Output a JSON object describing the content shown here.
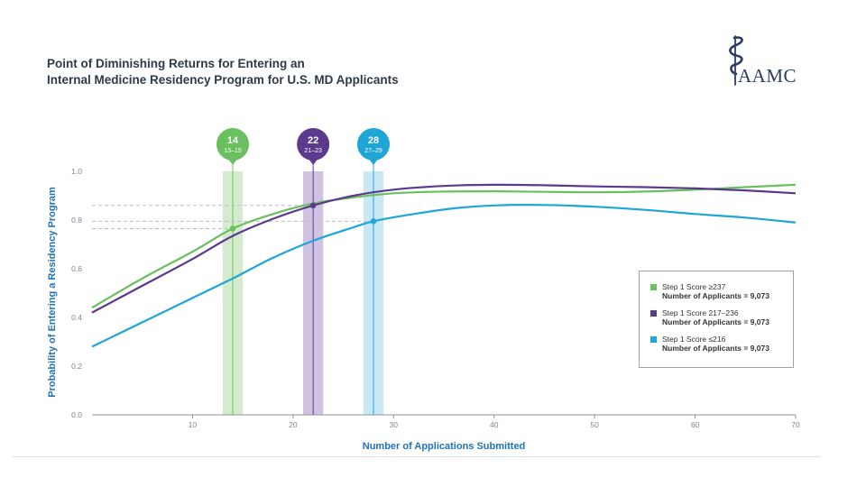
{
  "header": {
    "title_line1": "Point of Diminishing Returns for Entering an",
    "title_line2": "Internal Medicine Residency Program for U.S. MD Applicants",
    "logo_text": "AAMC"
  },
  "colors": {
    "green": "#6abf5e",
    "purple": "#5b3a8e",
    "blue": "#1fa5d6",
    "green_band": "#cfe8c6",
    "purple_band": "#c8b9dc",
    "blue_band": "#bfe3f3",
    "axis_text": "#7a8590",
    "label_blue": "#1f73b8"
  },
  "chart_data": {
    "type": "line",
    "title": "Point of Diminishing Returns for Entering an Internal Medicine Residency Program for U.S. MD Applicants",
    "xlabel": "Number of Applications Submitted",
    "ylabel": "Probability of Entering a Residency Program",
    "xlim": [
      0,
      70
    ],
    "ylim": [
      0,
      1.0
    ],
    "x_ticks": [
      10,
      20,
      30,
      40,
      50,
      60,
      70
    ],
    "y_ticks": [
      "0.0",
      "0.2",
      "0.4",
      "0.6",
      "0.8",
      "1.0"
    ],
    "grid": false,
    "series": [
      {
        "name": "Step 1 Score ≥237",
        "legend_sub": "Number of Applicants = 9,073",
        "color_key": "green",
        "points": [
          [
            0,
            0.44
          ],
          [
            5,
            0.56
          ],
          [
            10,
            0.67
          ],
          [
            14,
            0.765
          ],
          [
            18,
            0.825
          ],
          [
            22,
            0.868
          ],
          [
            26,
            0.893
          ],
          [
            30,
            0.91
          ],
          [
            35,
            0.917
          ],
          [
            40,
            0.918
          ],
          [
            45,
            0.916
          ],
          [
            50,
            0.914
          ],
          [
            55,
            0.917
          ],
          [
            60,
            0.925
          ],
          [
            65,
            0.935
          ],
          [
            70,
            0.945
          ]
        ],
        "marker": {
          "center": 14,
          "range": "13–15",
          "band": [
            13,
            15
          ],
          "y": 0.765
        }
      },
      {
        "name": "Step 1 Score 217–236",
        "legend_sub": "Number of Applicants = 9,073",
        "color_key": "purple",
        "points": [
          [
            0,
            0.42
          ],
          [
            5,
            0.53
          ],
          [
            10,
            0.64
          ],
          [
            14,
            0.735
          ],
          [
            18,
            0.805
          ],
          [
            22,
            0.86
          ],
          [
            26,
            0.9
          ],
          [
            30,
            0.925
          ],
          [
            35,
            0.94
          ],
          [
            40,
            0.945
          ],
          [
            45,
            0.943
          ],
          [
            50,
            0.938
          ],
          [
            55,
            0.935
          ],
          [
            60,
            0.93
          ],
          [
            65,
            0.922
          ],
          [
            70,
            0.91
          ]
        ],
        "marker": {
          "center": 22,
          "range": "21–23",
          "band": [
            21,
            23
          ],
          "y": 0.86
        }
      },
      {
        "name": "Step 1 Score ≤216",
        "legend_sub": "Number of Applicants = 9,073",
        "color_key": "blue",
        "points": [
          [
            0,
            0.28
          ],
          [
            5,
            0.38
          ],
          [
            10,
            0.48
          ],
          [
            14,
            0.56
          ],
          [
            18,
            0.645
          ],
          [
            22,
            0.715
          ],
          [
            26,
            0.77
          ],
          [
            28,
            0.795
          ],
          [
            32,
            0.825
          ],
          [
            36,
            0.848
          ],
          [
            40,
            0.86
          ],
          [
            45,
            0.862
          ],
          [
            50,
            0.855
          ],
          [
            55,
            0.842
          ],
          [
            60,
            0.825
          ],
          [
            65,
            0.81
          ],
          [
            70,
            0.79
          ]
        ],
        "marker": {
          "center": 28,
          "range": "27–29",
          "band": [
            27,
            29
          ],
          "y": 0.795
        }
      }
    ]
  }
}
